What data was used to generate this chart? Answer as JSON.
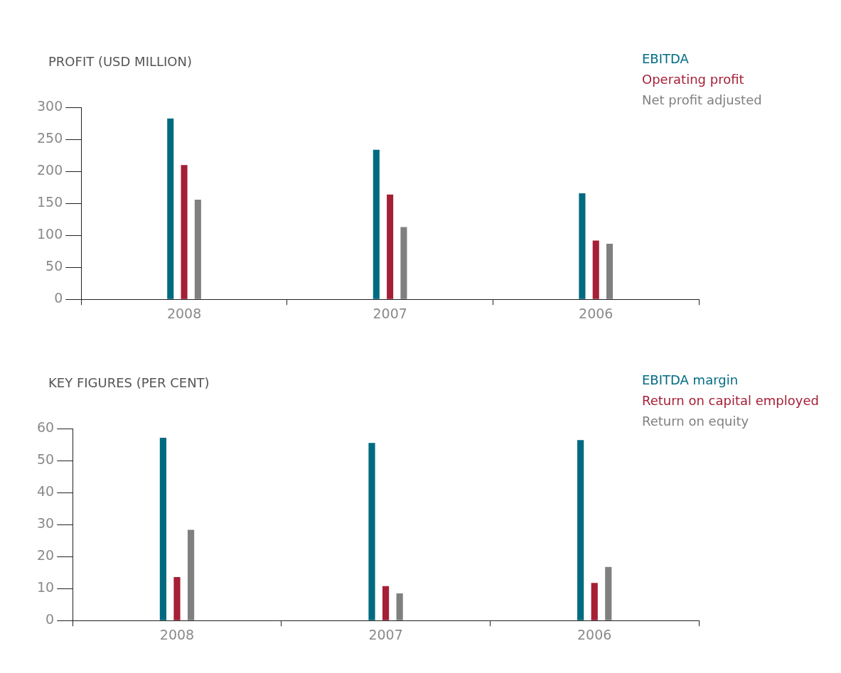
{
  "chart_data": [
    {
      "type": "bar",
      "title": "PROFIT (USD MILLION)",
      "categories": [
        "2008",
        "2007",
        "2006"
      ],
      "series": [
        {
          "name": "EBITDA",
          "color": "#006b80",
          "values": [
            283,
            234,
            166
          ]
        },
        {
          "name": "Operating profit",
          "color": "#a51f36",
          "values": [
            210,
            164,
            92
          ]
        },
        {
          "name": "Net profit adjusted",
          "color": "#808080",
          "values": [
            156,
            113,
            87
          ]
        }
      ],
      "ylim": [
        0,
        300
      ],
      "yticks": [
        0,
        50,
        100,
        150,
        200,
        250,
        300
      ],
      "grid": false,
      "legend": "top right"
    },
    {
      "type": "bar",
      "title": "KEY FIGURES (PER CENT)",
      "categories": [
        "2008",
        "2007",
        "2006"
      ],
      "series": [
        {
          "name": "EBITDA margin",
          "color": "#006b80",
          "values": [
            57.2,
            55.6,
            56.5
          ]
        },
        {
          "name": "Return on capital employed",
          "color": "#a51f36",
          "values": [
            13.6,
            10.8,
            11.8
          ]
        },
        {
          "name": "Return on equity",
          "color": "#808080",
          "values": [
            28.4,
            8.5,
            16.8
          ]
        }
      ],
      "ylim": [
        0,
        60
      ],
      "yticks": [
        0,
        10,
        20,
        30,
        40,
        50,
        60
      ],
      "grid": false,
      "legend": "top right"
    }
  ]
}
